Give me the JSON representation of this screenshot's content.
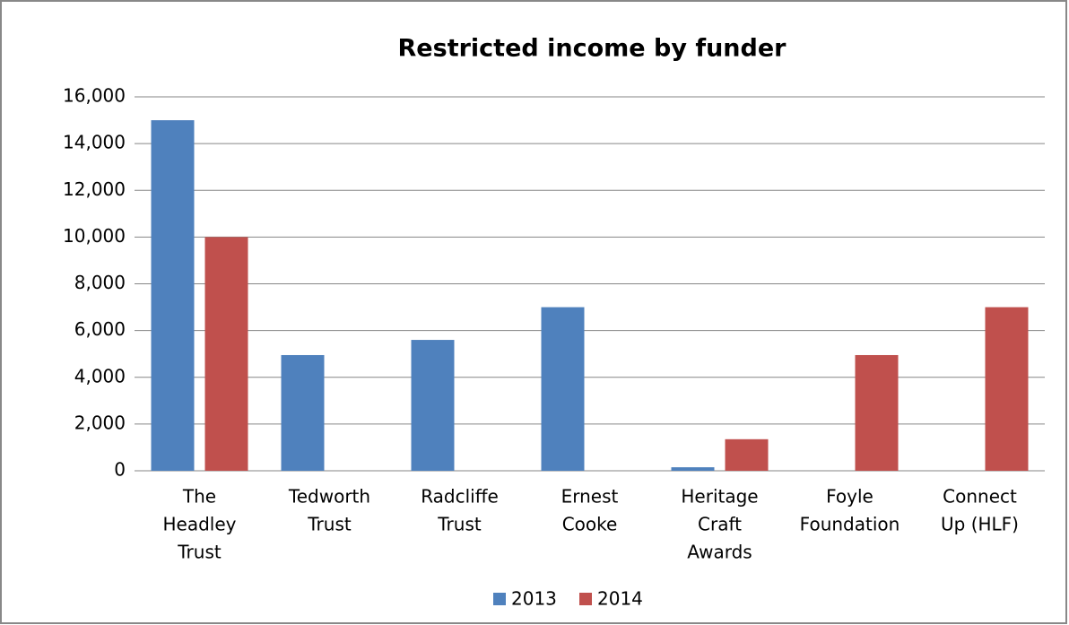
{
  "chart_data": {
    "type": "bar",
    "title": "Restricted income by funder",
    "categories": [
      [
        "The",
        "Headley",
        "Trust"
      ],
      [
        "Tedworth",
        "Trust"
      ],
      [
        "Radcliffe",
        "Trust"
      ],
      [
        "Ernest",
        "Cooke"
      ],
      [
        "Heritage",
        "Craft",
        "Awards"
      ],
      [
        "Foyle",
        "Foundation"
      ],
      [
        "Connect",
        "Up (HLF)"
      ]
    ],
    "series": [
      {
        "name": "2013",
        "color": "#4f81bd",
        "values": [
          15000,
          4950,
          5600,
          7000,
          150,
          0,
          0
        ]
      },
      {
        "name": "2014",
        "color": "#c0504d",
        "values": [
          10000,
          0,
          0,
          0,
          1350,
          4950,
          7000
        ]
      }
    ],
    "ylim": [
      0,
      16000
    ],
    "yticks": [
      0,
      {
        "value": 2000,
        "label": "2,000"
      },
      {
        "value": 4000,
        "label": "4,000"
      },
      {
        "value": 6000,
        "label": "6,000"
      },
      {
        "value": 8000,
        "label": "8,000"
      },
      {
        "value": 10000,
        "label": "10,000"
      },
      {
        "value": 12000,
        "label": "12,000"
      },
      {
        "value": 14000,
        "label": "14,000"
      },
      {
        "value": 16000,
        "label": "16,000"
      }
    ],
    "grid": true,
    "legend": "bottom"
  }
}
